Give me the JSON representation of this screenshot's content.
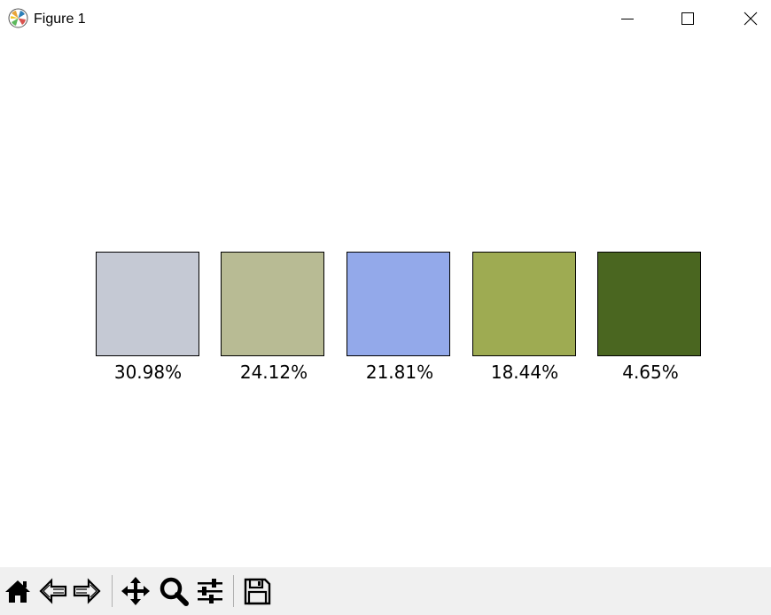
{
  "window": {
    "title": "Figure 1",
    "icon": "matplotlib-logo-icon",
    "controls": [
      "minimize-icon",
      "maximize-icon",
      "close-icon"
    ]
  },
  "swatches": [
    {
      "color": "#c5c9d4",
      "label": "30.98%"
    },
    {
      "color": "#b8bb94",
      "label": "24.12%"
    },
    {
      "color": "#93a9ea",
      "label": "21.81%"
    },
    {
      "color": "#9eab52",
      "label": "18.44%"
    },
    {
      "color": "#4a6620",
      "label": "4.65%"
    }
  ],
  "toolbar": {
    "tools": [
      "home-icon",
      "back-arrow-icon",
      "forward-arrow-icon",
      "pan-move-icon",
      "zoom-magnifier-icon",
      "configure-subplots-icon",
      "save-floppy-icon"
    ]
  }
}
